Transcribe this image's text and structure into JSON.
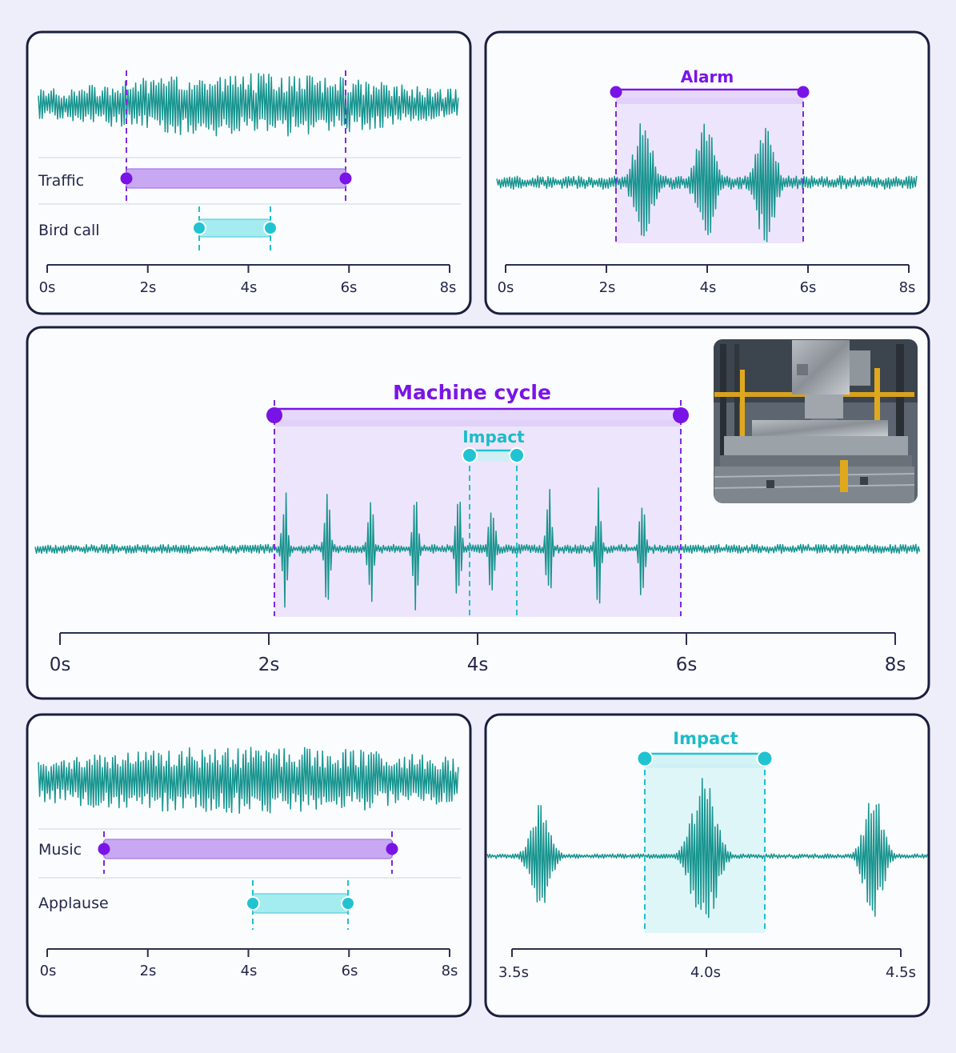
{
  "panels": {
    "traffic_bird": {
      "rows": [
        "Traffic",
        "Bird call"
      ],
      "ticks": [
        "0s",
        "2s",
        "4s",
        "6s",
        "8s"
      ]
    },
    "alarm": {
      "label": "Alarm",
      "ticks": [
        "0s",
        "2s",
        "4s",
        "6s",
        "8s"
      ]
    },
    "machine": {
      "label": "Machine cycle",
      "sub_label": "Impact",
      "ticks": [
        "0s",
        "2s",
        "4s",
        "6s",
        "8s"
      ],
      "photo_icon": "industrial-press-photo"
    },
    "music_applause": {
      "rows": [
        "Music",
        "Applause"
      ],
      "ticks": [
        "0s",
        "2s",
        "4s",
        "6s",
        "8s"
      ]
    },
    "impact_zoom": {
      "label": "Impact",
      "ticks": [
        "3.5s",
        "4.0s",
        "4.5s"
      ]
    }
  },
  "colors": {
    "waveform": "#17948f",
    "purple": "#7a14e6",
    "cyan": "#22c3d1",
    "background": "#eeeefa"
  }
}
